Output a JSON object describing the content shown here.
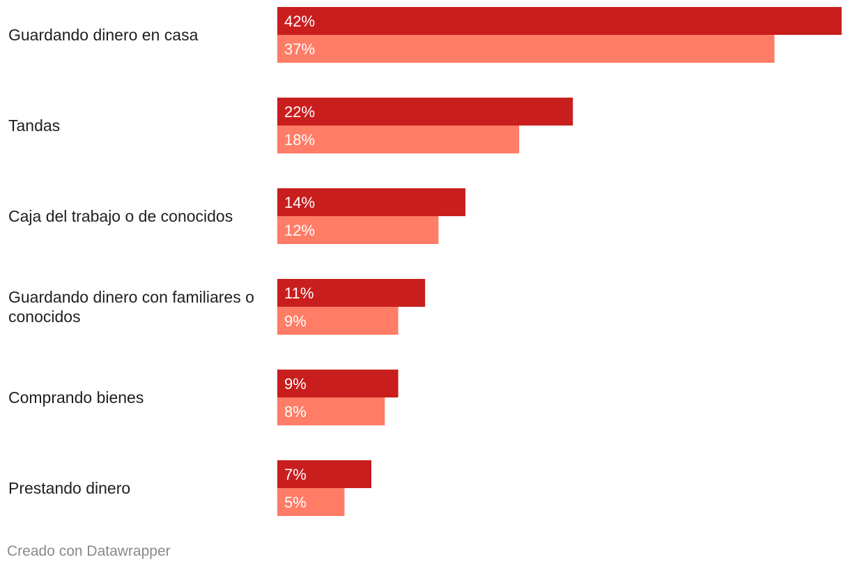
{
  "chart_data": {
    "type": "bar",
    "orientation": "horizontal",
    "categories": [
      "Guardando dinero en casa",
      "Tandas",
      "Caja del trabajo o de conocidos",
      "Guardando dinero con familiares o conocidos",
      "Comprando bienes",
      "Prestando dinero"
    ],
    "series": [
      {
        "name": "Serie 1",
        "color": "#c91e1e",
        "values": [
          42,
          22,
          14,
          11,
          9,
          7
        ]
      },
      {
        "name": "Serie 2",
        "color": "#ff7c66",
        "values": [
          37,
          18,
          12,
          9,
          8,
          5
        ]
      }
    ],
    "value_suffix": "%",
    "xlim": [
      0,
      42
    ],
    "title": "",
    "xlabel": "",
    "ylabel": "",
    "grid": false,
    "legend": "none"
  },
  "footer": {
    "credit": "Creado con Datawrapper"
  }
}
